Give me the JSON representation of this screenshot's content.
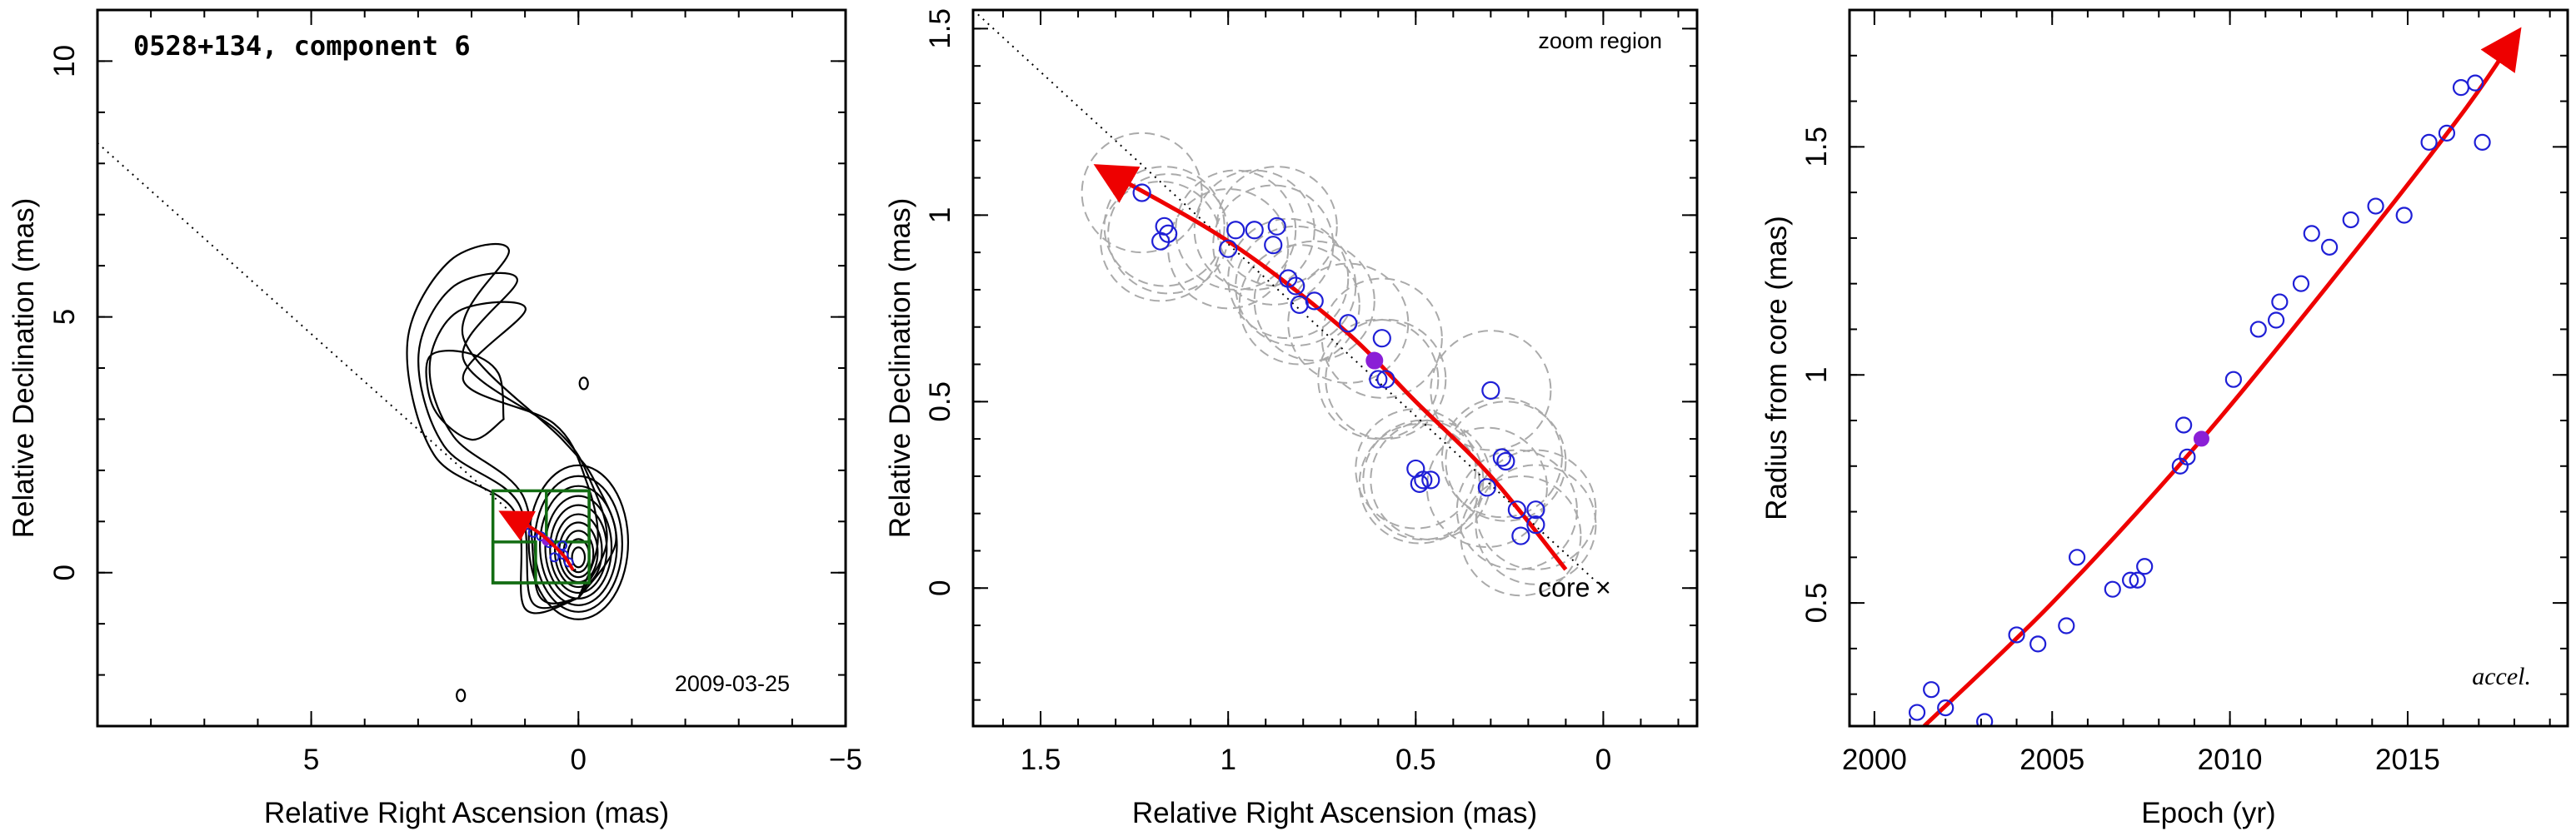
{
  "chart_data": [
    {
      "type": "scatter",
      "panel": "sky-map",
      "title": "",
      "annotation_title": "0528+134, component 6",
      "annotation_date": "2009-03-25",
      "xlabel": "Relative Right Ascension (mas)",
      "ylabel": "Relative Declination (mas)",
      "xlim": [
        9,
        -5
      ],
      "ylim": [
        -3,
        11
      ],
      "xticks": [
        "5",
        "0",
        "−5"
      ],
      "xtick_values": [
        5,
        0,
        -5
      ],
      "yticks": [
        "0",
        "5",
        "10"
      ],
      "ytick_values": [
        0,
        5,
        10
      ],
      "contours": {
        "center": [
          0.0,
          0.3
        ],
        "ring_radii_x": [
          0.12,
          0.2,
          0.28,
          0.36,
          0.44,
          0.53,
          0.62,
          0.72,
          0.82,
          0.93
        ],
        "ring_aspect": 1.55,
        "outer_levels": 3,
        "secondary_feature_center": [
          2.0,
          3.5
        ],
        "islands": [
          [
            -0.1,
            3.7
          ],
          [
            2.2,
            -2.4
          ]
        ]
      },
      "zoom_boxes": [
        [
          1.6,
          1.6,
          -0.2,
          -0.2
        ],
        [
          1.6,
          0.6,
          0.8,
          -0.2
        ],
        [
          0.6,
          0.6,
          -0.2,
          1.6
        ]
      ],
      "points": [
        [
          1.22,
          1.06
        ],
        [
          1.0,
          0.92
        ],
        [
          0.85,
          0.78
        ],
        [
          0.7,
          0.71
        ],
        [
          0.55,
          0.58
        ],
        [
          0.45,
          0.3
        ],
        [
          0.28,
          0.35
        ],
        [
          0.18,
          0.2
        ],
        [
          0.3,
          0.53
        ]
      ],
      "highlight": [
        0.6,
        0.62
      ],
      "trajectory": [
        [
          0.1,
          0.05
        ],
        [
          0.25,
          0.3
        ],
        [
          0.45,
          0.52
        ],
        [
          0.7,
          0.75
        ],
        [
          1.0,
          0.95
        ],
        [
          1.33,
          1.12
        ]
      ],
      "reference_line": [
        [
          9,
          8.4
        ],
        [
          0,
          0
        ]
      ]
    },
    {
      "type": "scatter",
      "panel": "zoom",
      "title": "",
      "annotation": "zoom region",
      "core_label": "core",
      "core_marker": "×",
      "xlabel": "Relative Right Ascension (mas)",
      "ylabel": "Relative Declination (mas)",
      "xlim": [
        1.68,
        -0.25
      ],
      "ylim": [
        -0.37,
        1.55
      ],
      "xticks": [
        "1.5",
        "1",
        "0.5",
        "0"
      ],
      "xtick_values": [
        1.5,
        1,
        0.5,
        0
      ],
      "yticks": [
        "0",
        "0.5",
        "1",
        "1.5"
      ],
      "ytick_values": [
        0,
        0.5,
        1,
        1.5
      ],
      "points": [
        [
          1.23,
          1.06
        ],
        [
          1.17,
          0.97
        ],
        [
          1.16,
          0.95
        ],
        [
          1.18,
          0.93
        ],
        [
          0.98,
          0.96
        ],
        [
          0.93,
          0.96
        ],
        [
          0.87,
          0.97
        ],
        [
          0.88,
          0.92
        ],
        [
          1.0,
          0.91
        ],
        [
          0.84,
          0.83
        ],
        [
          0.82,
          0.81
        ],
        [
          0.81,
          0.76
        ],
        [
          0.77,
          0.77
        ],
        [
          0.68,
          0.71
        ],
        [
          0.59,
          0.67
        ],
        [
          0.6,
          0.56
        ],
        [
          0.58,
          0.56
        ],
        [
          0.3,
          0.53
        ],
        [
          0.5,
          0.32
        ],
        [
          0.49,
          0.28
        ],
        [
          0.48,
          0.29
        ],
        [
          0.46,
          0.29
        ],
        [
          0.31,
          0.27
        ],
        [
          0.27,
          0.35
        ],
        [
          0.26,
          0.34
        ],
        [
          0.23,
          0.21
        ],
        [
          0.18,
          0.21
        ],
        [
          0.18,
          0.17
        ],
        [
          0.22,
          0.14
        ]
      ],
      "highlight": [
        0.61,
        0.61
      ],
      "circle_radius": 0.16,
      "trajectory": [
        [
          0.1,
          0.05
        ],
        [
          0.3,
          0.3
        ],
        [
          0.5,
          0.5
        ],
        [
          0.7,
          0.7
        ],
        [
          1.0,
          0.93
        ],
        [
          1.33,
          1.12
        ]
      ],
      "reference_line": [
        [
          1.68,
          1.55
        ],
        [
          0,
          0
        ]
      ]
    },
    {
      "type": "scatter",
      "panel": "radius-time",
      "title": "",
      "annotation": "accel.",
      "xlabel": "Epoch (yr)",
      "ylabel": "Radius from core (mas)",
      "xlim": [
        1999.3,
        2019.5
      ],
      "ylim": [
        0.23,
        1.8
      ],
      "xticks": [
        "2000",
        "2005",
        "2010",
        "2015"
      ],
      "xtick_values": [
        2000,
        2005,
        2010,
        2015
      ],
      "yticks": [
        "0.5",
        "1",
        "1.5"
      ],
      "ytick_values": [
        0.5,
        1,
        1.5
      ],
      "points": [
        [
          2001.2,
          0.26
        ],
        [
          2001.6,
          0.31
        ],
        [
          2002.0,
          0.27
        ],
        [
          2003.1,
          0.24
        ],
        [
          2004.0,
          0.43
        ],
        [
          2004.6,
          0.41
        ],
        [
          2005.4,
          0.45
        ],
        [
          2005.7,
          0.6
        ],
        [
          2006.7,
          0.53
        ],
        [
          2007.2,
          0.55
        ],
        [
          2007.4,
          0.55
        ],
        [
          2007.6,
          0.58
        ],
        [
          2008.6,
          0.8
        ],
        [
          2008.7,
          0.89
        ],
        [
          2008.8,
          0.82
        ],
        [
          2010.1,
          0.99
        ],
        [
          2010.8,
          1.1
        ],
        [
          2011.3,
          1.12
        ],
        [
          2011.4,
          1.16
        ],
        [
          2012.0,
          1.2
        ],
        [
          2012.3,
          1.31
        ],
        [
          2012.8,
          1.28
        ],
        [
          2013.4,
          1.34
        ],
        [
          2014.1,
          1.37
        ],
        [
          2014.9,
          1.35
        ],
        [
          2015.6,
          1.51
        ],
        [
          2016.1,
          1.53
        ],
        [
          2016.5,
          1.63
        ],
        [
          2016.9,
          1.64
        ],
        [
          2017.1,
          1.51
        ]
      ],
      "highlight": [
        2009.2,
        0.86
      ],
      "fit": [
        [
          2001.4,
          0.23
        ],
        [
          2005.0,
          0.5
        ],
        [
          2009.0,
          0.84
        ],
        [
          2013.0,
          1.22
        ],
        [
          2016.5,
          1.57
        ],
        [
          2018.0,
          1.74
        ]
      ]
    }
  ],
  "colors": {
    "axis": "#000000",
    "contour": "#000000",
    "data_point": "#1f1fd6",
    "highlight": "#8a1fd6",
    "trajectory": "#ee0000",
    "zoom_box": "#136d13",
    "fit_circle": "#aaaaaa",
    "reference_line": "#000000"
  }
}
